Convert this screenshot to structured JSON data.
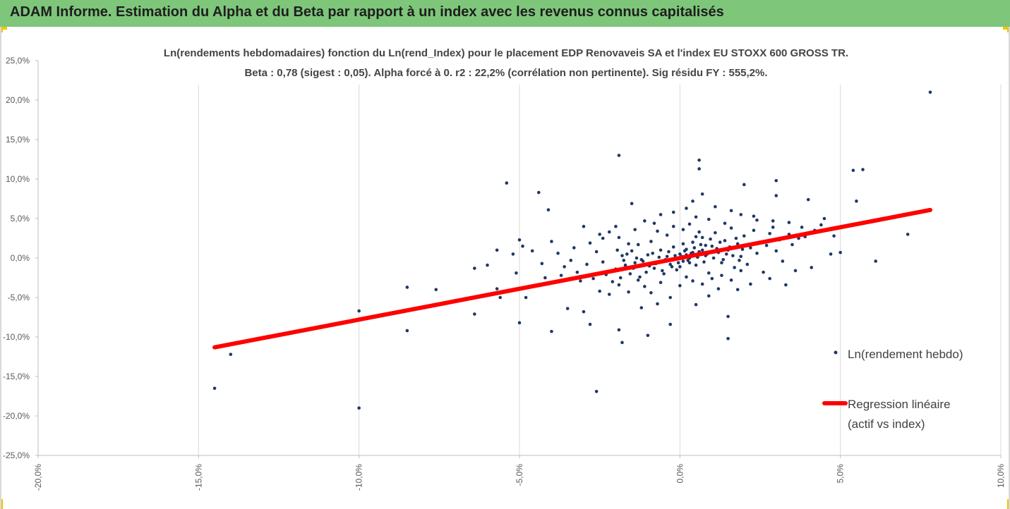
{
  "header": {
    "title": "ADAM Informe. Estimation du Alpha et du Beta par rapport à un index avec les revenus connus capitalisés"
  },
  "colors": {
    "header_bg": "#7dc67a",
    "corner_accent": "#f2c400",
    "points": "#1f3864",
    "regression": "#ff0000",
    "grid": "#d9d9d9"
  },
  "chart_data": {
    "type": "scatter",
    "title": "Ln(rendements hebdomadaires) fonction du Ln(rend_Index) pour le placement EDP Renovaveis SA et l'index EU STOXX 600 GROSS TR.",
    "subtitle": "Beta : 0,78 (sigest : 0,05). Alpha forcé à 0. r2 : 22,2% (corrélation non pertinente). Sig résidu FY : 555,2%.",
    "xlim": [
      -20,
      10
    ],
    "ylim": [
      -25,
      25
    ],
    "x_ticks": [
      "-20,0%",
      "-15,0%",
      "-10,0%",
      "-5,0%",
      "0,0%",
      "5,0%",
      "10,0%"
    ],
    "y_ticks": [
      "25,0%",
      "20,0%",
      "15,0%",
      "10,0%",
      "5,0%",
      "0,0%",
      "-5,0%",
      "-10,0%",
      "-15,0%",
      "-20,0%",
      "-25,0%"
    ],
    "grid": "vertical",
    "legend": {
      "position": "right",
      "entries": [
        "Ln(rendement hebdo)",
        "Regression linéaire",
        "(actif vs index)"
      ]
    },
    "regression": {
      "name": "Regression linéaire (actif vs index)",
      "slope": 0.78,
      "intercept": 0,
      "x_range": [
        -14.5,
        7.8
      ]
    },
    "series": [
      {
        "name": "Ln(rendement hebdo)",
        "points": [
          [
            7.8,
            21.0
          ],
          [
            -1.9,
            13.0
          ],
          [
            5.7,
            11.2
          ],
          [
            5.4,
            11.1
          ],
          [
            0.6,
            12.4
          ],
          [
            0.6,
            11.3
          ],
          [
            -5.4,
            9.5
          ],
          [
            -4.4,
            8.3
          ],
          [
            2.0,
            9.3
          ],
          [
            3.0,
            9.8
          ],
          [
            -4.1,
            6.1
          ],
          [
            5.5,
            7.2
          ],
          [
            7.1,
            3.0
          ],
          [
            6.1,
            -0.4
          ],
          [
            -14.5,
            -16.5
          ],
          [
            -14.0,
            -12.2
          ],
          [
            -10.0,
            -19.0
          ],
          [
            -10.0,
            -6.7
          ],
          [
            -2.6,
            -16.9
          ],
          [
            -8.5,
            -3.7
          ],
          [
            -8.5,
            -9.2
          ],
          [
            -7.6,
            -4.0
          ],
          [
            -7.5,
            -5.9
          ],
          [
            -6.4,
            -1.3
          ],
          [
            -6.4,
            -7.1
          ],
          [
            -6.0,
            -0.9
          ],
          [
            -5.7,
            1.0
          ],
          [
            -5.7,
            -3.9
          ],
          [
            -5.6,
            -5.0
          ],
          [
            -5.2,
            0.5
          ],
          [
            -5.1,
            -1.9
          ],
          [
            -5.0,
            2.3
          ],
          [
            -5.0,
            -8.2
          ],
          [
            -4.8,
            -5.0
          ],
          [
            -4.6,
            0.9
          ],
          [
            -4.0,
            -9.3
          ],
          [
            -4.0,
            2.1
          ],
          [
            -1.9,
            -9.1
          ],
          [
            -1.8,
            -10.7
          ],
          [
            -1.0,
            -9.8
          ],
          [
            1.5,
            -7.4
          ],
          [
            1.5,
            -10.2
          ],
          [
            4.8,
            2.8
          ],
          [
            4.5,
            5.0
          ],
          [
            4.0,
            7.4
          ],
          [
            3.0,
            7.9
          ],
          [
            0.7,
            8.1
          ],
          [
            -1.5,
            6.9
          ],
          [
            -2.4,
            2.5
          ],
          [
            -3.0,
            4.0
          ],
          [
            -3.5,
            -6.4
          ],
          [
            -3.0,
            -6.8
          ],
          [
            -2.8,
            -8.4
          ],
          [
            -2.5,
            -4.2
          ],
          [
            -2.1,
            -3.0
          ],
          [
            -1.6,
            1.8
          ],
          [
            -1.2,
            -6.3
          ],
          [
            -0.7,
            -5.8
          ],
          [
            -0.3,
            -8.4
          ],
          [
            0.5,
            -5.9
          ],
          [
            0.9,
            -4.8
          ],
          [
            1.2,
            -3.9
          ],
          [
            1.8,
            -4.0
          ],
          [
            2.2,
            -3.3
          ],
          [
            2.8,
            -2.6
          ],
          [
            3.3,
            -3.4
          ],
          [
            3.6,
            -1.6
          ],
          [
            4.1,
            -1.2
          ],
          [
            4.7,
            0.5
          ],
          [
            5.0,
            0.7
          ],
          [
            3.9,
            2.7
          ],
          [
            3.4,
            3.0
          ],
          [
            2.9,
            4.7
          ],
          [
            2.3,
            5.3
          ],
          [
            1.6,
            6.0
          ],
          [
            1.1,
            6.5
          ],
          [
            0.2,
            6.3
          ],
          [
            -0.6,
            5.5
          ],
          [
            -1.1,
            4.7
          ],
          [
            -2.0,
            4.0
          ],
          [
            -2.2,
            3.3
          ],
          [
            -3.3,
            1.3
          ],
          [
            -3.6,
            -1.1
          ],
          [
            -3.9,
            -3.0
          ],
          [
            -4.2,
            -2.5
          ],
          [
            -3.7,
            -2.2
          ],
          [
            -3.2,
            -1.8
          ],
          [
            -2.7,
            -2.6
          ],
          [
            -2.3,
            -2.1
          ],
          [
            -2.0,
            -1.4
          ],
          [
            -1.7,
            -0.9
          ],
          [
            -1.4,
            -0.6
          ],
          [
            -1.2,
            -0.2
          ],
          [
            -1.0,
            0.4
          ],
          [
            -0.8,
            -1.3
          ],
          [
            -0.6,
            1.0
          ],
          [
            -0.5,
            -2.0
          ],
          [
            -0.4,
            0.2
          ],
          [
            -0.3,
            -0.8
          ],
          [
            -0.2,
            1.4
          ],
          [
            -0.1,
            -1.5
          ],
          [
            0.0,
            0.5
          ],
          [
            0.1,
            -0.4
          ],
          [
            0.2,
            1.1
          ],
          [
            0.3,
            0.0
          ],
          [
            0.4,
            2.0
          ],
          [
            0.5,
            -0.9
          ],
          [
            0.6,
            0.8
          ],
          [
            0.7,
            2.6
          ],
          [
            0.8,
            0.3
          ],
          [
            0.9,
            -1.9
          ],
          [
            1.0,
            1.5
          ],
          [
            1.1,
            3.2
          ],
          [
            1.2,
            0.7
          ],
          [
            1.3,
            -0.6
          ],
          [
            1.4,
            2.2
          ],
          [
            1.5,
            1.0
          ],
          [
            1.6,
            3.8
          ],
          [
            1.7,
            -1.2
          ],
          [
            1.8,
            1.8
          ],
          [
            1.9,
            0.2
          ],
          [
            2.0,
            2.8
          ],
          [
            2.1,
            -0.8
          ],
          [
            2.2,
            1.3
          ],
          [
            2.3,
            3.5
          ],
          [
            2.4,
            0.6
          ],
          [
            2.5,
            2.0
          ],
          [
            2.6,
            -1.8
          ],
          [
            2.7,
            1.6
          ],
          [
            2.8,
            3.1
          ],
          [
            3.0,
            0.9
          ],
          [
            3.1,
            2.3
          ],
          [
            3.2,
            -0.4
          ],
          [
            3.5,
            1.7
          ],
          [
            3.7,
            2.5
          ],
          [
            4.2,
            3.5
          ],
          [
            0.1,
            3.6
          ],
          [
            0.3,
            4.3
          ],
          [
            0.5,
            5.2
          ],
          [
            -0.2,
            4.0
          ],
          [
            -0.4,
            2.9
          ],
          [
            -0.7,
            3.4
          ],
          [
            -0.9,
            2.1
          ],
          [
            -1.3,
            1.7
          ],
          [
            -1.5,
            0.9
          ],
          [
            -1.8,
            0.3
          ],
          [
            -2.4,
            -0.5
          ],
          [
            -2.6,
            0.8
          ],
          [
            -2.9,
            -0.8
          ],
          [
            -3.1,
            -2.9
          ],
          [
            -2.2,
            -4.6
          ],
          [
            -1.9,
            -3.4
          ],
          [
            -1.6,
            -4.3
          ],
          [
            -1.3,
            -2.8
          ],
          [
            -1.1,
            -3.6
          ],
          [
            -0.9,
            -4.4
          ],
          [
            -0.6,
            -3.1
          ],
          [
            -0.3,
            -5.0
          ],
          [
            0.0,
            -3.5
          ],
          [
            0.2,
            -2.4
          ],
          [
            0.4,
            -2.9
          ],
          [
            0.7,
            -3.3
          ],
          [
            1.0,
            -2.6
          ],
          [
            1.3,
            -2.2
          ],
          [
            1.6,
            -2.8
          ],
          [
            1.9,
            -1.6
          ],
          [
            -4.9,
            1.5
          ],
          [
            -4.3,
            -0.7
          ],
          [
            -3.8,
            0.6
          ],
          [
            -3.4,
            -0.3
          ],
          [
            -2.8,
            1.9
          ],
          [
            -2.5,
            3.0
          ],
          [
            -1.9,
            2.6
          ],
          [
            -1.4,
            3.6
          ],
          [
            -0.8,
            4.4
          ],
          [
            -0.2,
            5.8
          ],
          [
            0.4,
            7.2
          ],
          [
            0.9,
            4.9
          ],
          [
            1.4,
            4.4
          ],
          [
            1.9,
            5.5
          ],
          [
            2.4,
            4.8
          ],
          [
            2.9,
            3.9
          ],
          [
            3.4,
            4.5
          ],
          [
            3.8,
            3.9
          ],
          [
            4.4,
            4.2
          ],
          [
            0.05,
            0.2
          ],
          [
            0.15,
            0.9
          ],
          [
            0.25,
            -0.3
          ],
          [
            0.35,
            0.6
          ],
          [
            0.45,
            1.3
          ],
          [
            0.55,
            0.1
          ],
          [
            0.65,
            1.7
          ],
          [
            0.75,
            -0.5
          ],
          [
            0.85,
            0.5
          ],
          [
            0.95,
            2.4
          ],
          [
            -0.05,
            -0.6
          ],
          [
            -0.15,
            0.3
          ],
          [
            -0.25,
            -1.1
          ],
          [
            -0.35,
            0.8
          ],
          [
            -0.45,
            -0.2
          ],
          [
            -0.55,
            -1.6
          ],
          [
            -0.65,
            0.1
          ],
          [
            -0.75,
            -0.7
          ],
          [
            -0.85,
            0.6
          ],
          [
            -0.95,
            -1.0
          ],
          [
            1.05,
            0.0
          ],
          [
            1.15,
            1.2
          ],
          [
            1.25,
            2.0
          ],
          [
            1.35,
            -0.2
          ],
          [
            1.45,
            0.5
          ],
          [
            1.55,
            1.4
          ],
          [
            1.65,
            0.3
          ],
          [
            1.75,
            2.5
          ],
          [
            1.85,
            -0.3
          ],
          [
            1.95,
            1.1
          ],
          [
            -1.05,
            -1.8
          ],
          [
            -1.15,
            -0.4
          ],
          [
            -1.25,
            -2.4
          ],
          [
            -1.35,
            0.0
          ],
          [
            -1.45,
            -1.3
          ],
          [
            -1.55,
            -2.0
          ],
          [
            -1.65,
            0.5
          ],
          [
            -1.75,
            -0.3
          ],
          [
            -1.85,
            -2.5
          ],
          [
            -1.95,
            1.0
          ],
          [
            0.6,
            0.4
          ],
          [
            0.7,
            1.0
          ],
          [
            0.8,
            1.6
          ],
          [
            0.4,
            0.7
          ],
          [
            0.3,
            -0.6
          ],
          [
            0.2,
            0.4
          ],
          [
            0.1,
            1.8
          ],
          [
            0.0,
            -1.1
          ],
          [
            0.5,
            2.7
          ],
          [
            0.6,
            3.3
          ]
        ]
      }
    ]
  }
}
